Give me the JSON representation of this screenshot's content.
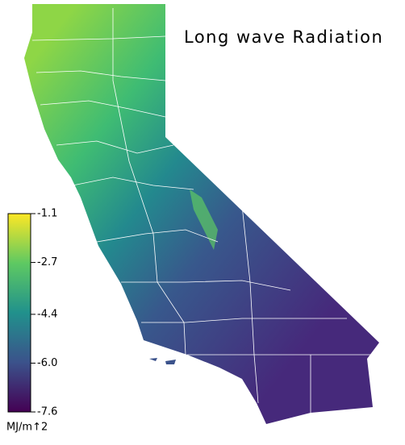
{
  "title": "Long wave Radiation",
  "colorbar": {
    "label": "MJ/m↑2",
    "lim": [
      -7.6,
      -1.1
    ],
    "ticks": [
      -1.1,
      -2.7,
      -4.4,
      {
        "value": -6,
        "label": "-6.0"
      },
      -7.6
    ],
    "colors": [
      "#440154",
      "#3b528b",
      "#21918c",
      "#5ec962",
      "#fde725"
    ]
  }
}
